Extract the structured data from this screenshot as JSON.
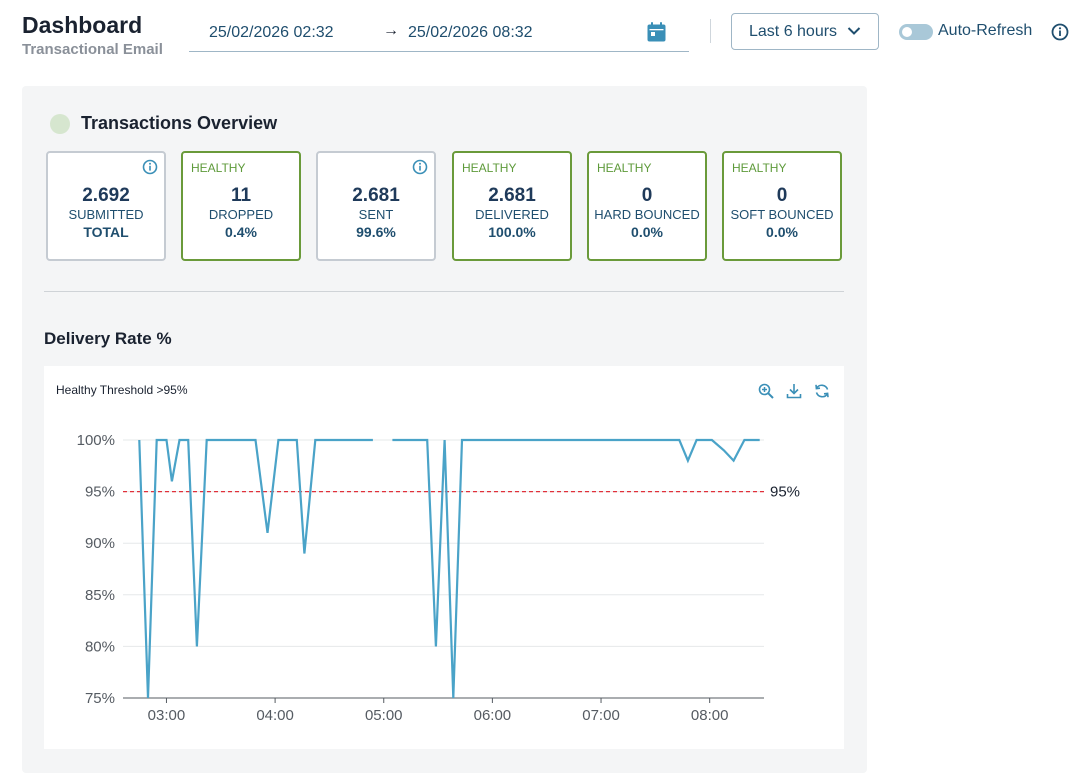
{
  "header": {
    "title": "Dashboard",
    "subtitle": "Transactional Email"
  },
  "date_range": {
    "start": "25/02/2026 02:32",
    "arrow": "→",
    "end": "25/02/2026 08:32",
    "calendar_icon": "calendar-icon"
  },
  "range_select": {
    "label": "Last 6 hours",
    "icon": "chevron-down-icon"
  },
  "auto_refresh": {
    "label": "Auto-Refresh",
    "enabled": false
  },
  "overview": {
    "title": "Transactions Overview",
    "cards": [
      {
        "badge": "",
        "value": "2.692",
        "label": "SUBMITTED",
        "sub": "TOTAL",
        "healthy": false,
        "info": true
      },
      {
        "badge": "HEALTHY",
        "value": "11",
        "label": "DROPPED",
        "sub": "0.4%",
        "healthy": true,
        "info": false
      },
      {
        "badge": "",
        "value": "2.681",
        "label": "SENT",
        "sub": "99.6%",
        "healthy": false,
        "info": true
      },
      {
        "badge": "HEALTHY",
        "value": "2.681",
        "label": "DELIVERED",
        "sub": "100.0%",
        "healthy": true,
        "info": false
      },
      {
        "badge": "HEALTHY",
        "value": "0",
        "label": "HARD BOUNCED",
        "sub": "0.0%",
        "healthy": true,
        "info": false
      },
      {
        "badge": "HEALTHY",
        "value": "0",
        "label": "SOFT BOUNCED",
        "sub": "0.0%",
        "healthy": true,
        "info": false
      }
    ]
  },
  "delivery": {
    "title": "Delivery Rate %",
    "subtitle": "Healthy Threshold >95%"
  },
  "colors": {
    "accent": "#3a8fb7",
    "line": "#4aa3c8",
    "threshold": "#e0303a",
    "healthy_border": "#6a9a3a"
  },
  "chart_data": {
    "type": "line",
    "title": "Delivery Rate %",
    "subtitle": "Healthy Threshold >95%",
    "xlabel": "",
    "ylabel": "",
    "x_range_hours": [
      2.6,
      8.5
    ],
    "ylim": [
      75,
      100
    ],
    "y_ticks": [
      100,
      95,
      90,
      85,
      80,
      75
    ],
    "y_tick_labels": [
      "100%",
      "95%",
      "90%",
      "85%",
      "80%",
      "75%"
    ],
    "x_ticks": [
      3,
      4,
      5,
      6,
      7,
      8
    ],
    "x_tick_labels": [
      "03:00",
      "04:00",
      "05:00",
      "06:00",
      "07:00",
      "08:00"
    ],
    "threshold": {
      "value": 95,
      "label": "95%"
    },
    "series": [
      {
        "name": "Delivery Rate",
        "segments": [
          [
            [
              2.75,
              100
            ],
            [
              2.83,
              75
            ],
            [
              2.91,
              100
            ],
            [
              3.0,
              100
            ],
            [
              3.05,
              96
            ],
            [
              3.12,
              100
            ],
            [
              3.2,
              100
            ],
            [
              3.28,
              80
            ],
            [
              3.37,
              100
            ],
            [
              3.82,
              100
            ],
            [
              3.93,
              91
            ],
            [
              4.03,
              100
            ],
            [
              4.2,
              100
            ],
            [
              4.27,
              89
            ],
            [
              4.37,
              100
            ],
            [
              4.9,
              100
            ]
          ],
          [
            [
              5.08,
              100
            ],
            [
              5.4,
              100
            ],
            [
              5.48,
              80
            ],
            [
              5.56,
              100
            ],
            [
              5.64,
              75
            ],
            [
              5.72,
              100
            ],
            [
              7.72,
              100
            ],
            [
              7.8,
              98
            ],
            [
              7.88,
              100
            ],
            [
              8.02,
              100
            ],
            [
              8.13,
              99
            ],
            [
              8.22,
              98
            ],
            [
              8.32,
              100
            ],
            [
              8.46,
              100
            ]
          ]
        ]
      }
    ]
  }
}
